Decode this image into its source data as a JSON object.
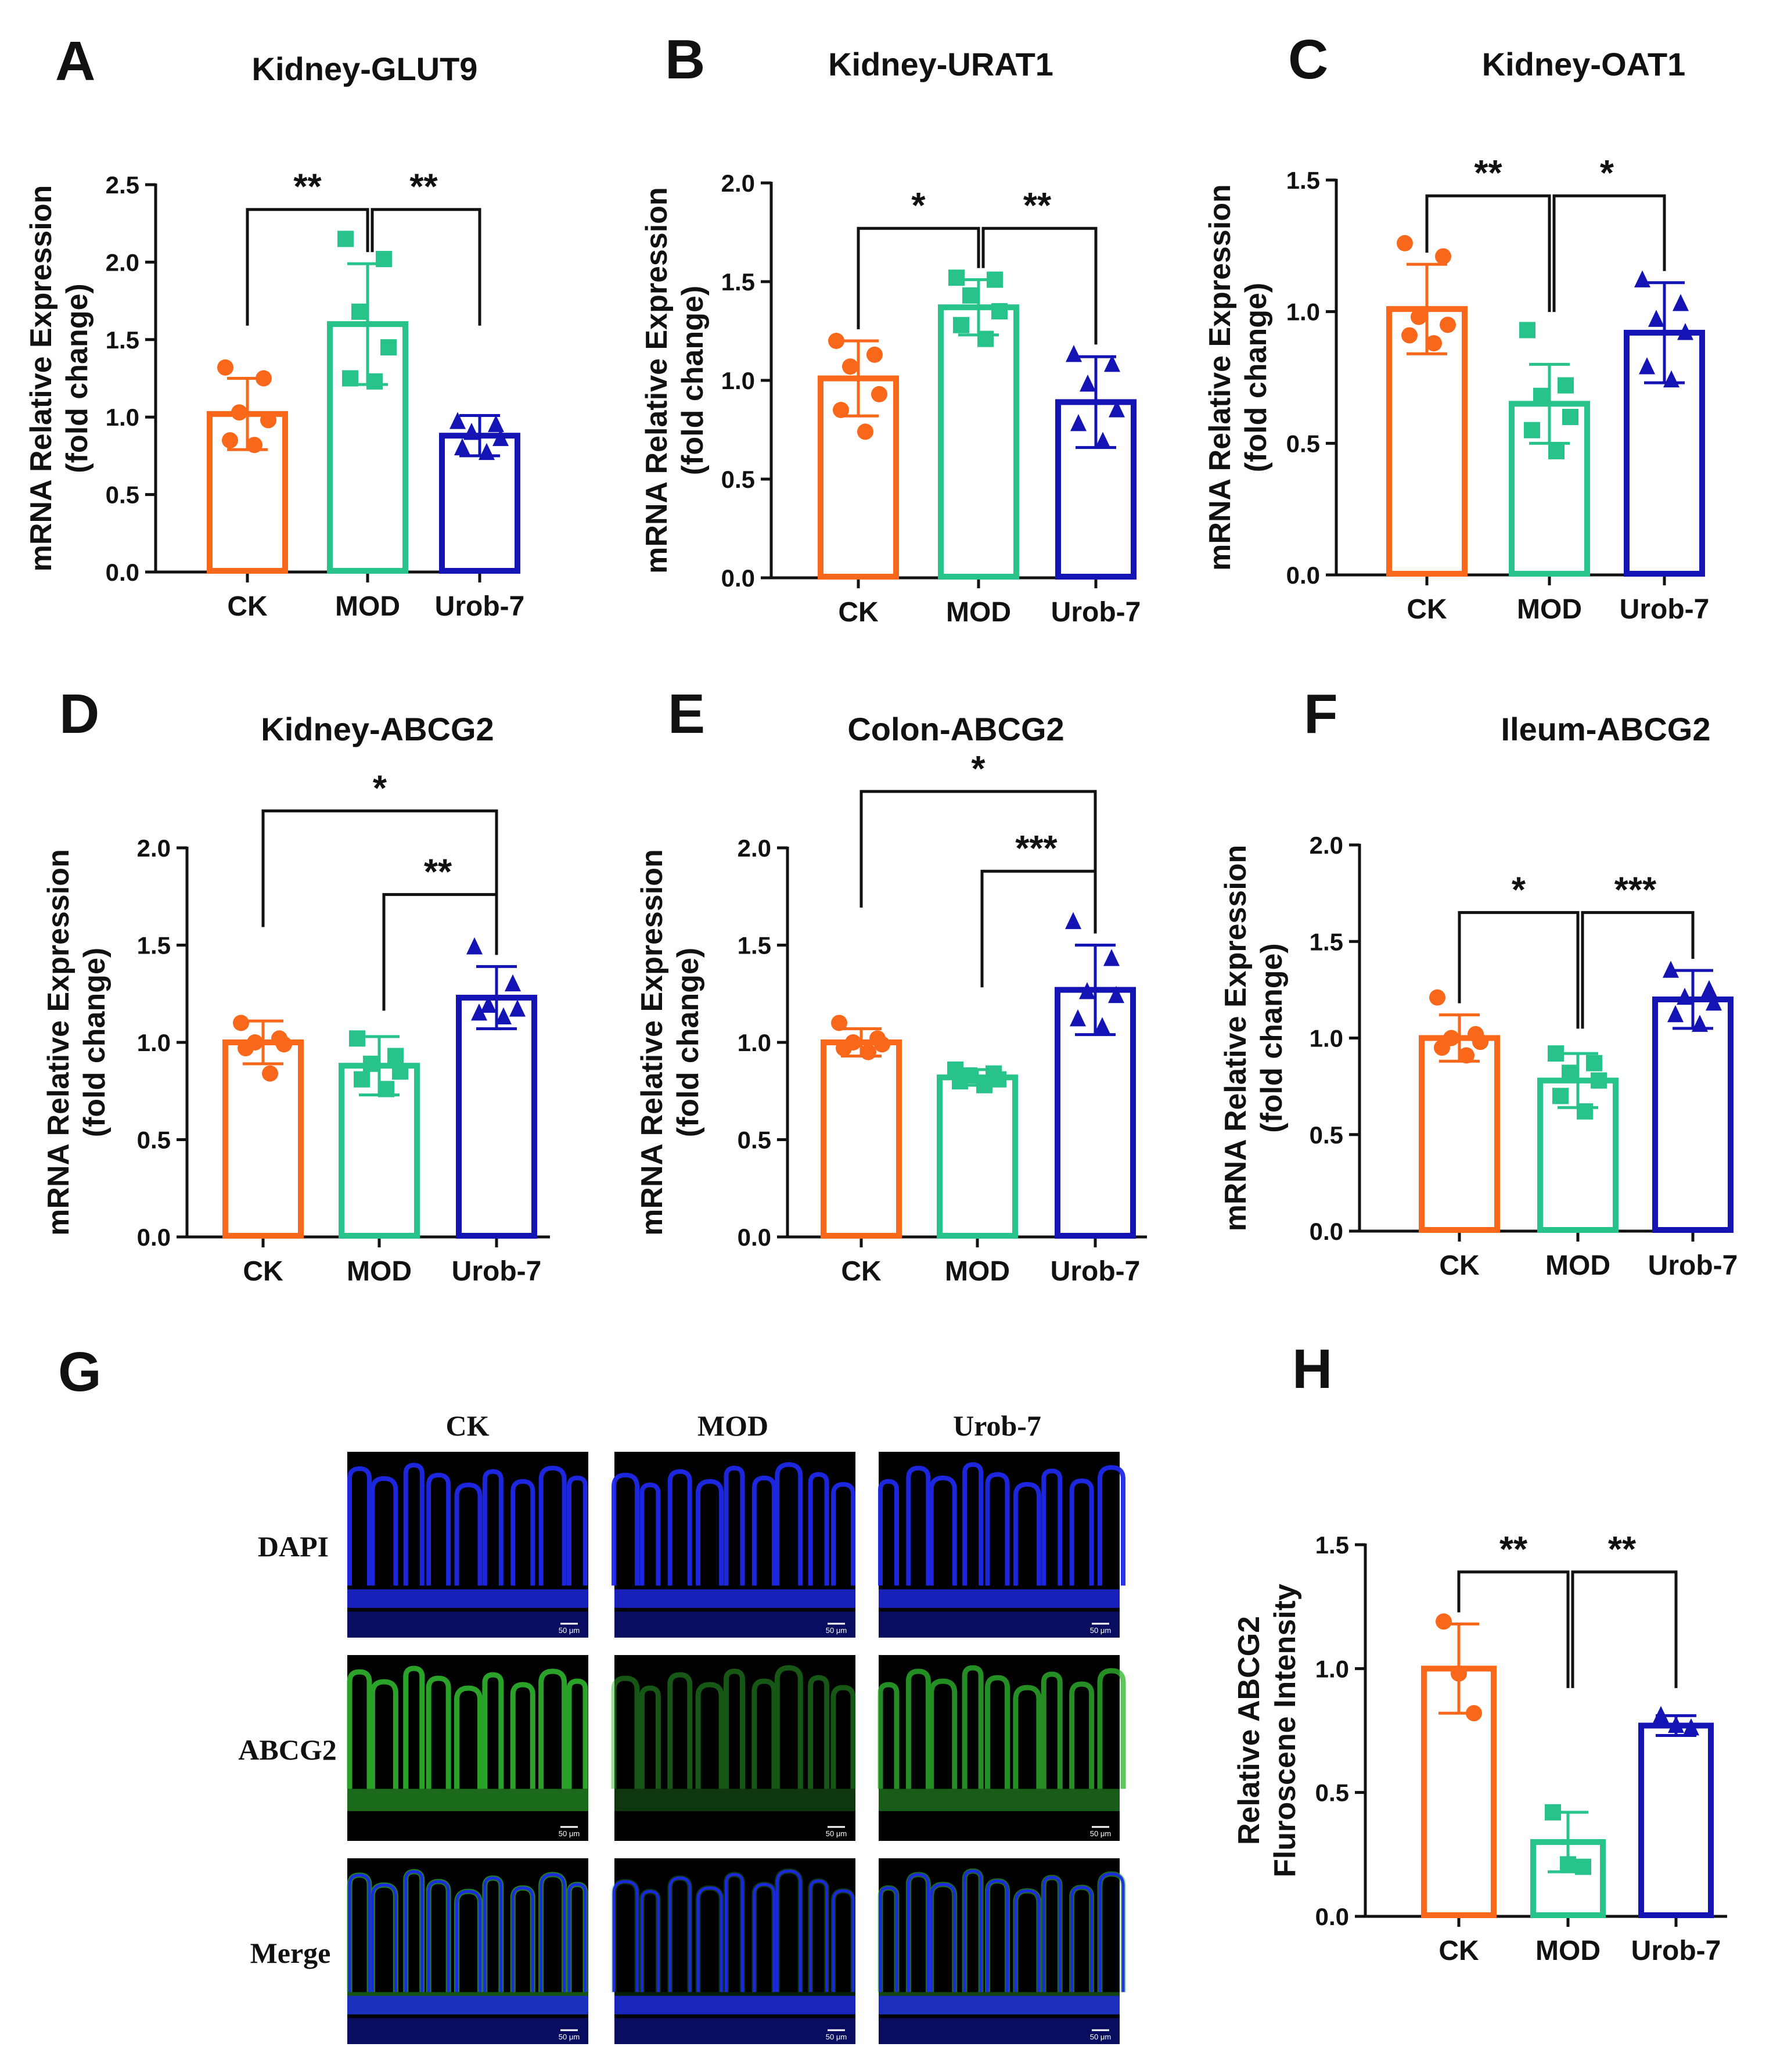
{
  "chart_data": [
    {
      "id": "A",
      "type": "bar",
      "letter": "A",
      "title": "Kidney-GLUT9",
      "ylabel": [
        "mRNA Relative Expression",
        "(fold change)"
      ],
      "categories": [
        "CK",
        "MOD",
        "Urob-7"
      ],
      "ylim": [
        0,
        2.5
      ],
      "yticks": [
        "0.0",
        "0.5",
        "1.0",
        "1.5",
        "2.0",
        "2.5"
      ],
      "series": [
        {
          "name": "mean",
          "values": [
            1.02,
            1.6,
            0.88
          ]
        },
        {
          "name": "sd",
          "values": [
            0.23,
            0.39,
            0.13
          ]
        }
      ],
      "points": [
        [
          1.32,
          1.25,
          1.03,
          0.98,
          0.85,
          0.82
        ],
        [
          2.15,
          2.02,
          1.68,
          1.45,
          1.25,
          1.23
        ],
        [
          0.97,
          0.95,
          0.9,
          0.86,
          0.8,
          0.77
        ]
      ],
      "sig": [
        {
          "from": 0,
          "to": 1,
          "label": "**",
          "level": 2.34
        },
        {
          "from": 1,
          "to": 2,
          "label": "**",
          "level": 2.34
        }
      ]
    },
    {
      "id": "B",
      "type": "bar",
      "letter": "B",
      "title": "Kidney-URAT1",
      "ylabel": [
        "mRNA Relative Expression",
        "(fold change)"
      ],
      "categories": [
        "CK",
        "MOD",
        "Urob-7"
      ],
      "ylim": [
        0,
        2
      ],
      "yticks": [
        "0.0",
        "0.5",
        "1.0",
        "1.5",
        "2.0"
      ],
      "series": [
        {
          "name": "mean",
          "values": [
            1.01,
            1.37,
            0.89
          ]
        },
        {
          "name": "sd",
          "values": [
            0.19,
            0.14,
            0.23
          ]
        }
      ],
      "points": [
        [
          1.2,
          1.13,
          1.07,
          0.93,
          0.85,
          0.74
        ],
        [
          1.52,
          1.51,
          1.43,
          1.35,
          1.28,
          1.21
        ],
        [
          1.13,
          1.08,
          0.98,
          0.85,
          0.78,
          0.69
        ]
      ],
      "sig": [
        {
          "from": 0,
          "to": 1,
          "label": "*",
          "level": 1.77
        },
        {
          "from": 1,
          "to": 2,
          "label": "**",
          "level": 1.77
        }
      ]
    },
    {
      "id": "C",
      "type": "bar",
      "letter": "C",
      "title": "Kidney-OAT1",
      "ylabel": [
        "mRNA Relative Expression",
        "(fold change)"
      ],
      "categories": [
        "CK",
        "MOD",
        "Urob-7"
      ],
      "ylim": [
        0,
        1.5
      ],
      "yticks": [
        "0.0",
        "0.5",
        "1.0",
        "1.5"
      ],
      "series": [
        {
          "name": "mean",
          "values": [
            1.01,
            0.65,
            0.92
          ]
        },
        {
          "name": "sd",
          "values": [
            0.17,
            0.15,
            0.19
          ]
        }
      ],
      "points": [
        [
          1.26,
          1.21,
          0.98,
          0.95,
          0.91,
          0.88
        ],
        [
          0.93,
          0.72,
          0.68,
          0.6,
          0.55,
          0.47
        ],
        [
          1.12,
          1.03,
          0.97,
          0.92,
          0.79,
          0.74
        ]
      ],
      "sig": [
        {
          "from": 0,
          "to": 1,
          "label": "**",
          "level": 1.44
        },
        {
          "from": 1,
          "to": 2,
          "label": "*",
          "level": 1.44
        }
      ]
    },
    {
      "id": "D",
      "type": "bar",
      "letter": "D",
      "title": "Kidney-ABCG2",
      "ylabel": [
        "mRNA Relative Expression",
        "(fold change)"
      ],
      "categories": [
        "CK",
        "MOD",
        "Urob-7"
      ],
      "ylim": [
        0,
        2
      ],
      "yticks": [
        "0.0",
        "0.5",
        "1.0",
        "1.5",
        "2.0"
      ],
      "series": [
        {
          "name": "mean",
          "values": [
            1.0,
            0.88,
            1.23
          ]
        },
        {
          "name": "sd",
          "values": [
            0.11,
            0.15,
            0.16
          ]
        }
      ],
      "points": [
        [
          1.1,
          1.02,
          1.0,
          0.99,
          0.97,
          0.84
        ],
        [
          1.02,
          0.93,
          0.89,
          0.85,
          0.81,
          0.76
        ],
        [
          1.49,
          1.3,
          1.19,
          1.17,
          1.15,
          1.13
        ]
      ],
      "sig": [
        {
          "from": 0,
          "to": 2,
          "label": "*",
          "level": 2.19
        },
        {
          "from": 1,
          "to": 2,
          "label": "**",
          "level": 1.76
        }
      ]
    },
    {
      "id": "E",
      "type": "bar",
      "letter": "E",
      "title": "Colon-ABCG2",
      "ylabel": [
        "mRNA Relative Expression",
        "(fold change)"
      ],
      "categories": [
        "CK",
        "MOD",
        "Urob-7"
      ],
      "ylim": [
        0,
        2
      ],
      "yticks": [
        "0.0",
        "0.5",
        "1.0",
        "1.5",
        "2.0"
      ],
      "series": [
        {
          "name": "mean",
          "values": [
            1.0,
            0.82,
            1.27
          ]
        },
        {
          "name": "sd",
          "values": [
            0.07,
            0.04,
            0.23
          ]
        }
      ],
      "points": [
        [
          1.1,
          1.02,
          1.0,
          0.99,
          0.97,
          0.95
        ],
        [
          0.86,
          0.84,
          0.83,
          0.81,
          0.8,
          0.78
        ],
        [
          1.62,
          1.43,
          1.26,
          1.24,
          1.12,
          1.08
        ]
      ],
      "sig": [
        {
          "from": 0,
          "to": 2,
          "label": "*",
          "level": 2.29
        },
        {
          "from": 1,
          "to": 2,
          "label": "***",
          "level": 1.88
        }
      ]
    },
    {
      "id": "F",
      "type": "bar",
      "letter": "F",
      "title": "Ileum-ABCG2",
      "ylabel": [
        "mRNA Relative Expression",
        "(fold change)"
      ],
      "categories": [
        "CK",
        "MOD",
        "Urob-7"
      ],
      "ylim": [
        0,
        2
      ],
      "yticks": [
        "0.0",
        "0.5",
        "1.0",
        "1.5",
        "2.0"
      ],
      "series": [
        {
          "name": "mean",
          "values": [
            1.0,
            0.78,
            1.2
          ]
        },
        {
          "name": "sd",
          "values": [
            0.12,
            0.14,
            0.15
          ]
        }
      ],
      "points": [
        [
          1.21,
          1.02,
          1.0,
          0.98,
          0.95,
          0.91
        ],
        [
          0.92,
          0.87,
          0.82,
          0.78,
          0.7,
          0.62
        ],
        [
          1.35,
          1.25,
          1.21,
          1.18,
          1.12,
          1.07
        ]
      ],
      "sig": [
        {
          "from": 0,
          "to": 1,
          "label": "*",
          "level": 1.65
        },
        {
          "from": 1,
          "to": 2,
          "label": "***",
          "level": 1.65
        }
      ]
    },
    {
      "id": "H",
      "type": "bar",
      "letter": "H",
      "title": "",
      "ylabel": [
        "Relative ABCG2",
        "Fluroscene Intensity"
      ],
      "categories": [
        "CK",
        "MOD",
        "Urob-7"
      ],
      "ylim": [
        0,
        1.5
      ],
      "yticks": [
        "0.0",
        "0.5",
        "1.0",
        "1.5"
      ],
      "series": [
        {
          "name": "mean",
          "values": [
            1.0,
            0.3,
            0.77
          ]
        },
        {
          "name": "sd",
          "values": [
            0.18,
            0.12,
            0.04
          ]
        }
      ],
      "points": [
        [
          1.19,
          0.98,
          0.82
        ],
        [
          0.42,
          0.21,
          0.2
        ],
        [
          0.81,
          0.77,
          0.76
        ]
      ],
      "sig": [
        {
          "from": 0,
          "to": 1,
          "label": "**",
          "level": 1.39
        },
        {
          "from": 1,
          "to": 2,
          "label": "**",
          "level": 1.39
        }
      ]
    }
  ],
  "colors": {
    "CK": "#f9671b",
    "MOD": "#27c38a",
    "Urob-7": "#1414b4",
    "axis": "#111111",
    "dapi": "#1e28e8",
    "abcg2": "#2fb72f"
  },
  "shapes": [
    "circle",
    "square",
    "triangle"
  ],
  "micrograph": {
    "letter": "G",
    "columns": [
      "CK",
      "MOD",
      "Urob-7"
    ],
    "rows": [
      "DAPI",
      "ABCG2",
      "Merge"
    ],
    "scale_bar": "50 μm",
    "green_intensity": [
      [
        0,
        0,
        0
      ],
      [
        0.85,
        0.3,
        0.7
      ],
      [
        0.6,
        0.05,
        0.45
      ]
    ]
  }
}
